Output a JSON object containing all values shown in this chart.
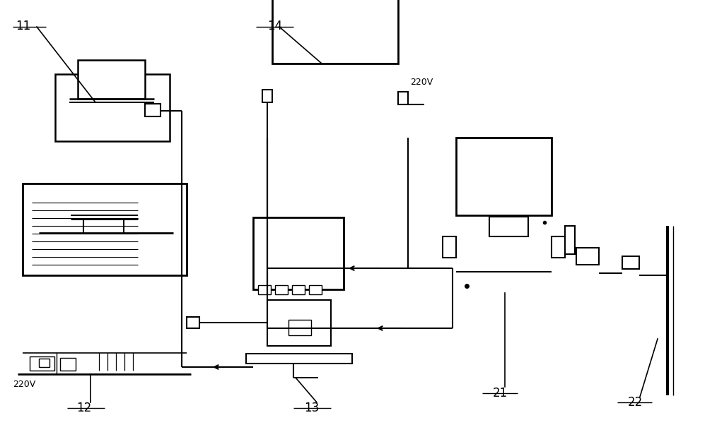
{
  "bg_color": "#ffffff",
  "line_color": "#000000",
  "figsize": [
    10.14,
    6.29
  ],
  "dpi": 100
}
